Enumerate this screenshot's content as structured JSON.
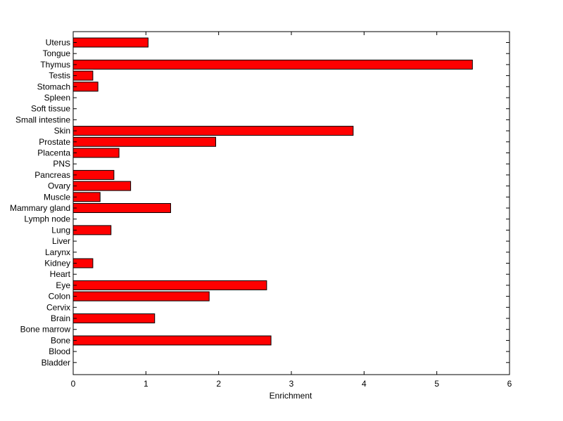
{
  "chart_data": {
    "type": "bar",
    "orientation": "horizontal",
    "categories": [
      "Uterus",
      "Tongue",
      "Thymus",
      "Testis",
      "Stomach",
      "Spleen",
      "Soft tissue",
      "Small intestine",
      "Skin",
      "Prostate",
      "Placenta",
      "PNS",
      "Pancreas",
      "Ovary",
      "Muscle",
      "Mammary gland",
      "Lymph node",
      "Lung",
      "Liver",
      "Larynx",
      "Kidney",
      "Heart",
      "Eye",
      "Colon",
      "Cervix",
      "Brain",
      "Bone marrow",
      "Bone",
      "Blood",
      "Bladder"
    ],
    "values": [
      1.03,
      0,
      5.49,
      0.27,
      0.34,
      0,
      0,
      0,
      3.85,
      1.96,
      0.63,
      0,
      0.56,
      0.79,
      0.37,
      1.34,
      0,
      0.52,
      0,
      0,
      0.27,
      0,
      2.66,
      1.87,
      0,
      1.12,
      0,
      2.72,
      0,
      0
    ],
    "xlabel": "Enrichment",
    "ylabel": "",
    "xlim": [
      0,
      6
    ],
    "xticks": [
      0,
      1,
      2,
      3,
      4,
      5,
      6
    ],
    "grid": false,
    "bar_color": "#ff0000",
    "edge_color": "#000000"
  }
}
